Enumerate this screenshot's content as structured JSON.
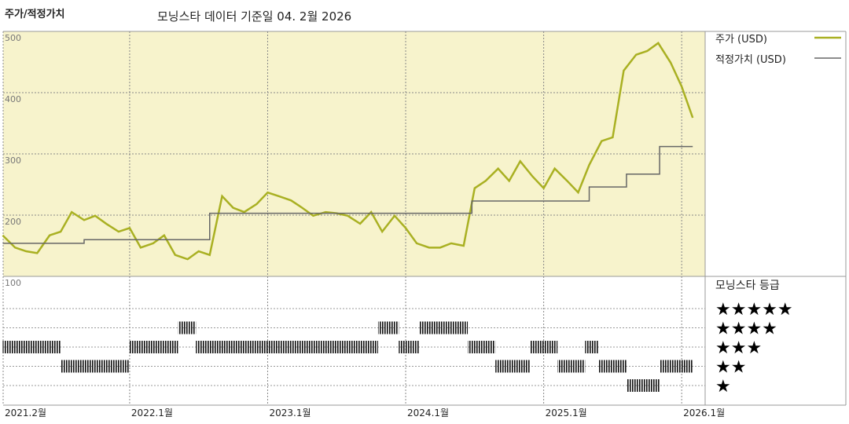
{
  "chart_data": {
    "type": "line",
    "title": "주가/적정가치",
    "subtitle": "모닝스타 데이터 기준일 04. 2월 2026",
    "xlim": [
      2021.0833,
      2026.17
    ],
    "xticks": [
      {
        "value": 2021.0833,
        "label": "2021.2월"
      },
      {
        "value": 2022,
        "label": "2022.1월"
      },
      {
        "value": 2023,
        "label": "2023.1월"
      },
      {
        "value": 2024,
        "label": "2024.1월"
      },
      {
        "value": 2025,
        "label": "2025.1월"
      },
      {
        "value": 2026,
        "label": "2026.1월"
      }
    ],
    "ylim": [
      100,
      500
    ],
    "yticks": [
      100,
      200,
      300,
      400,
      500
    ],
    "grid": true,
    "series": [
      {
        "name": "주가 (USD)",
        "color": "#a9b022",
        "x": [
          2021.08,
          2021.17,
          2021.25,
          2021.33,
          2021.42,
          2021.5,
          2021.58,
          2021.67,
          2021.75,
          2021.83,
          2021.92,
          2022.0,
          2022.08,
          2022.17,
          2022.25,
          2022.33,
          2022.42,
          2022.5,
          2022.58,
          2022.67,
          2022.75,
          2022.83,
          2022.92,
          2023.0,
          2023.08,
          2023.17,
          2023.25,
          2023.33,
          2023.42,
          2023.5,
          2023.58,
          2023.67,
          2023.75,
          2023.83,
          2023.92,
          2024.0,
          2024.08,
          2024.17,
          2024.25,
          2024.33,
          2024.42,
          2024.5,
          2024.58,
          2024.67,
          2024.75,
          2024.83,
          2024.92,
          2025.0,
          2025.08,
          2025.17,
          2025.25,
          2025.33,
          2025.42,
          2025.5,
          2025.58,
          2025.67,
          2025.75,
          2025.83,
          2025.92,
          2026.0,
          2026.08
        ],
        "values": [
          167,
          147,
          141,
          138,
          167,
          173,
          205,
          192,
          199,
          186,
          173,
          179,
          147,
          154,
          167,
          135,
          128,
          141,
          135,
          231,
          212,
          205,
          218,
          237,
          231,
          224,
          212,
          199,
          205,
          203,
          199,
          186,
          205,
          173,
          199,
          179,
          154,
          147,
          147,
          154,
          150,
          244,
          256,
          276,
          256,
          288,
          263,
          244,
          276,
          256,
          237,
          282,
          321,
          327,
          436,
          462,
          468,
          481,
          449,
          410,
          359
        ]
      },
      {
        "name": "적정가치 (USD)",
        "color": "#666666",
        "step": true,
        "x": [
          2021.08,
          2021.67,
          2022.58,
          2024.48,
          2025.33,
          2025.6,
          2025.84,
          2026.08
        ],
        "values": [
          154,
          160,
          203,
          223,
          246,
          267,
          312,
          312
        ]
      }
    ],
    "ratings": {
      "title": "모닝스타 등급",
      "labels": [
        "★",
        "★★",
        "★★★",
        "★★★★",
        "★★★★★"
      ],
      "edges": [
        2021.08,
        2021.5,
        2022.0,
        2022.35,
        2022.48,
        2023.8,
        2023.95,
        2024.1,
        2024.45,
        2024.65,
        2024.9,
        2025.1,
        2025.3,
        2025.4,
        2025.6,
        2025.84,
        2026.08
      ],
      "values": [
        3,
        2,
        3,
        4,
        3,
        4,
        3,
        4,
        3,
        2,
        3,
        2,
        3,
        2,
        1,
        2
      ]
    }
  }
}
